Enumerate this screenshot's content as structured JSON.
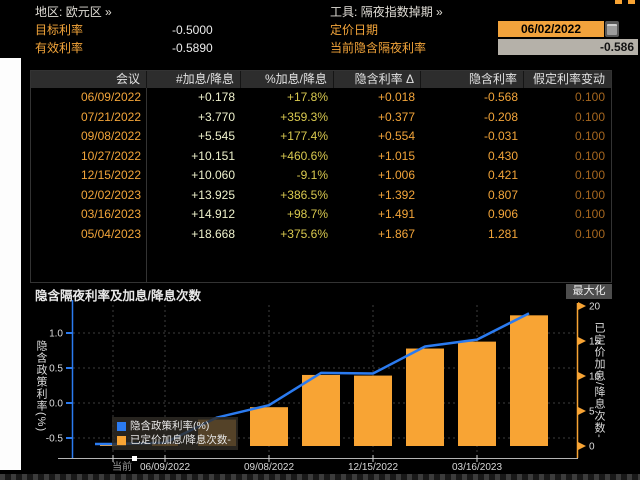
{
  "header": {
    "region_label": "地区:",
    "region_value": "欧元区",
    "region_arrow": "»",
    "tool_label": "工具:",
    "tool_value": "隔夜指数掉期",
    "tool_arrow": "»",
    "target_rate_label": "目标利率",
    "target_rate_value": "-0.5000",
    "effective_rate_label": "有效利率",
    "effective_rate_value": "-0.5890",
    "pricing_date_label": "定价日期",
    "pricing_date_value": "06/02/2022",
    "current_implied_label": "当前隐含隔夜利率",
    "current_implied_value": "-0.586"
  },
  "table": {
    "columns": [
      "会议",
      "#加息/降息",
      "%加息/降息",
      "隐含利率 Δ",
      "隐含利率",
      "假定利率变动"
    ],
    "column_colors": [
      "#f3a53a",
      "#eff2cd",
      "#d9c94f",
      "#f3a53a",
      "#f3a53a",
      "#a5661e"
    ],
    "rows": [
      [
        "06/09/2022",
        "+0.178",
        "+17.8%",
        "+0.018",
        "-0.568",
        "0.100"
      ],
      [
        "07/21/2022",
        "+3.770",
        "+359.3%",
        "+0.377",
        "-0.208",
        "0.100"
      ],
      [
        "09/08/2022",
        "+5.545",
        "+177.4%",
        "+0.554",
        "-0.031",
        "0.100"
      ],
      [
        "10/27/2022",
        "+10.151",
        "+460.6%",
        "+1.015",
        "0.430",
        "0.100"
      ],
      [
        "12/15/2022",
        "+10.060",
        "-9.1%",
        "+1.006",
        "0.421",
        "0.100"
      ],
      [
        "02/02/2023",
        "+13.925",
        "+386.5%",
        "+1.392",
        "0.807",
        "0.100"
      ],
      [
        "03/16/2023",
        "+14.912",
        "+98.7%",
        "+1.491",
        "0.906",
        "0.100"
      ],
      [
        "05/04/2023",
        "+18.668",
        "+375.6%",
        "+1.867",
        "1.281",
        "0.100"
      ]
    ]
  },
  "chart": {
    "title": "隐含隔夜利率及加息/降息次数",
    "maximize_label": "最大化"
  },
  "chart_data": {
    "type": "bar+line",
    "categories": [
      "当前",
      "06/09/2022",
      "07/21/2022",
      "09/08/2022",
      "10/27/2022",
      "12/15/2022",
      "02/02/2023",
      "03/16/2023",
      "05/04/2023"
    ],
    "series": [
      {
        "name": "隐含政策利率(%)",
        "type": "line",
        "axis": "left",
        "color": "#2b7bf0",
        "values": [
          -0.586,
          -0.568,
          -0.208,
          -0.031,
          0.43,
          0.421,
          0.807,
          0.906,
          1.281
        ]
      },
      {
        "name": "已定价加息/降息次数-",
        "type": "bar",
        "axis": "right",
        "color": "#f8a434",
        "values": [
          0,
          0.178,
          3.77,
          5.545,
          10.151,
          10.06,
          13.925,
          14.912,
          18.668
        ]
      }
    ],
    "left_axis": {
      "title": "隐含政策利率(%)",
      "ticks": [
        1.0,
        0.5,
        0.0,
        -0.5
      ],
      "range": [
        -0.79,
        1.45
      ]
    },
    "right_axis": {
      "title": "已定价加息/降息次数-",
      "ticks": [
        20,
        15,
        10,
        5,
        0
      ],
      "range": [
        -0.9,
        20.5
      ]
    },
    "x_ticks": [
      {
        "index": 0,
        "label": "当前"
      },
      {
        "index": 1,
        "label": "06/09/2022"
      },
      {
        "index": 3,
        "label": "09/08/2022"
      },
      {
        "index": 5,
        "label": "12/15/2022"
      },
      {
        "index": 7,
        "label": "03/16/2023"
      }
    ],
    "legend": [
      {
        "label": "隐含政策利率(%)",
        "color": "#2b7bf0"
      },
      {
        "label": "已定价加息/降息次数-",
        "color": "#f8a434"
      }
    ],
    "grid": true,
    "legend_position": "inside-bottom-left"
  }
}
